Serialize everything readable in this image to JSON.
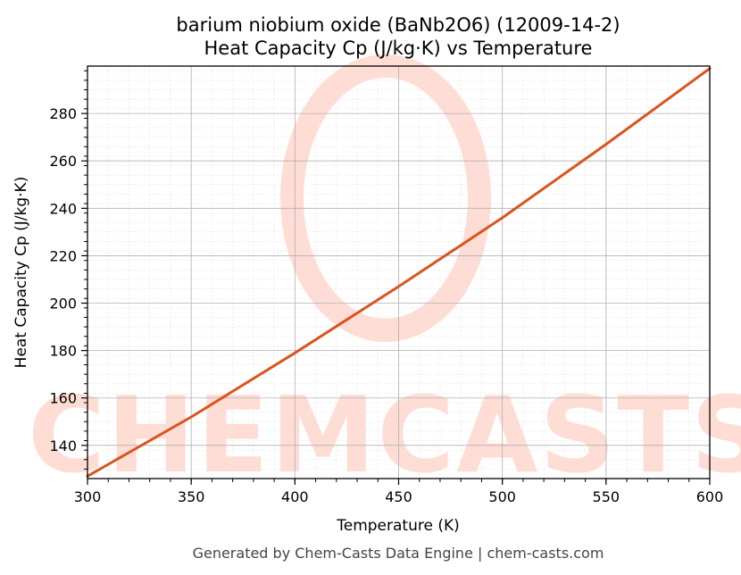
{
  "chart_data": {
    "type": "line",
    "title": "barium niobium oxide (BaNb2O6) (12009-14-2)",
    "subtitle": "Heat Capacity Cp (J/kg·K) vs Temperature",
    "xlabel": "Temperature (K)",
    "ylabel": "Heat Capacity Cp (J/kg·K)",
    "xlim": [
      300,
      600
    ],
    "ylim": [
      126,
      300
    ],
    "xticks": [
      300,
      350,
      400,
      450,
      500,
      550,
      600
    ],
    "yticks": [
      140,
      160,
      180,
      200,
      220,
      240,
      260,
      280
    ],
    "grid": true,
    "series": [
      {
        "x": [
          300,
          350,
          400,
          450,
          500,
          550,
          600
        ],
        "y": [
          127,
          152,
          179,
          207,
          236,
          267,
          299
        ]
      }
    ],
    "line_color": "#d9541f"
  },
  "watermark": {
    "text": "CHEMCASTS",
    "color": "#ffddd5"
  },
  "footer": "Generated by Chem-Casts Data Engine | chem-casts.com"
}
